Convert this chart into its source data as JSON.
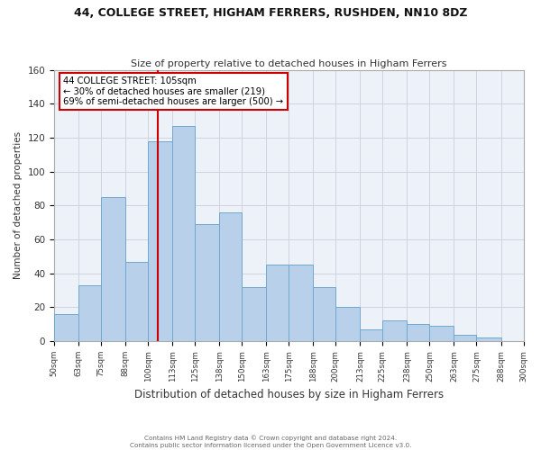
{
  "title": "44, COLLEGE STREET, HIGHAM FERRERS, RUSHDEN, NN10 8DZ",
  "subtitle": "Size of property relative to detached houses in Higham Ferrers",
  "xlabel": "Distribution of detached houses by size in Higham Ferrers",
  "ylabel": "Number of detached properties",
  "bins": [
    50,
    63,
    75,
    88,
    100,
    113,
    125,
    138,
    150,
    163,
    175,
    188,
    200,
    213,
    225,
    238,
    250,
    263,
    275,
    288,
    300
  ],
  "values": [
    16,
    33,
    85,
    47,
    118,
    127,
    69,
    76,
    32,
    45,
    45,
    32,
    20,
    7,
    12,
    10,
    9,
    4,
    2,
    0
  ],
  "ylim": [
    0,
    160
  ],
  "yticks": [
    0,
    20,
    40,
    60,
    80,
    100,
    120,
    140,
    160
  ],
  "bar_color": "#b8d0ea",
  "bar_edge_color": "#6fa8d0",
  "reference_line_x": 105,
  "reference_line_color": "#cc0000",
  "annotation_title": "44 COLLEGE STREET: 105sqm",
  "annotation_line1": "← 30% of detached houses are smaller (219)",
  "annotation_line2": "69% of semi-detached houses are larger (500) →",
  "annotation_box_edge_color": "#cc0000",
  "background_color": "#ffffff",
  "plot_bg_color": "#edf2f9",
  "grid_color": "#c8d0dc",
  "footer_line1": "Contains HM Land Registry data © Crown copyright and database right 2024.",
  "footer_line2": "Contains public sector information licensed under the Open Government Licence v3.0."
}
